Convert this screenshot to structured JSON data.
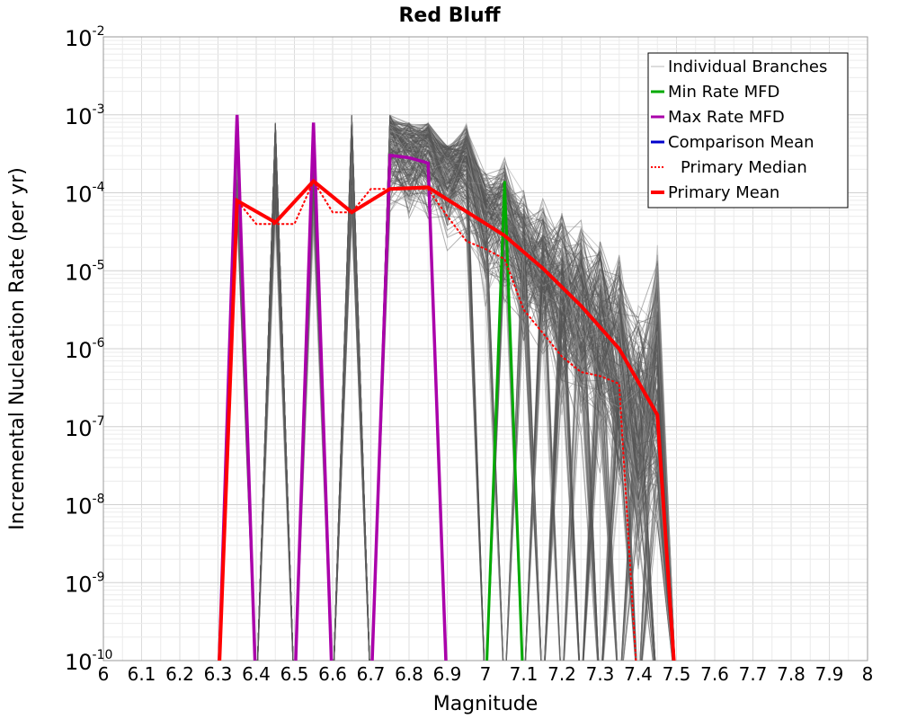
{
  "chart_data": {
    "type": "line",
    "title": "Red Bluff",
    "xlabel": "Magnitude",
    "ylabel": "Incremental Nucleation Rate (per yr)",
    "xlim": [
      6,
      8
    ],
    "ylim_log10": [
      -10,
      -2
    ],
    "y_scale": "log",
    "grid": true,
    "legend_position": "top-right",
    "x_ticks": [
      "6",
      "6.1",
      "6.2",
      "6.3",
      "6.4",
      "6.5",
      "6.6",
      "6.7",
      "6.8",
      "6.9",
      "7",
      "7.1",
      "7.2",
      "7.3",
      "7.4",
      "7.5",
      "7.6",
      "7.7",
      "7.8",
      "7.9",
      "8"
    ],
    "y_ticks": [
      {
        "base": "10",
        "exp": "-2",
        "log": -2
      },
      {
        "base": "10",
        "exp": "-3",
        "log": -3
      },
      {
        "base": "10",
        "exp": "-4",
        "log": -4
      },
      {
        "base": "10",
        "exp": "-5",
        "log": -5
      },
      {
        "base": "10",
        "exp": "-6",
        "log": -6
      },
      {
        "base": "10",
        "exp": "-7",
        "log": -7
      },
      {
        "base": "10",
        "exp": "-8",
        "log": -8
      },
      {
        "base": "10",
        "exp": "-9",
        "log": -9
      },
      {
        "base": "10",
        "exp": "-10",
        "log": -10
      }
    ],
    "legend": [
      {
        "label": "Individual Branches",
        "color": "#bbbbbb",
        "style": "thin"
      },
      {
        "label": "Min Rate MFD",
        "color": "#00aa00",
        "style": "solid"
      },
      {
        "label": "Max Rate MFD",
        "color": "#aa00aa",
        "style": "solid"
      },
      {
        "label": "Comparison Mean",
        "color": "#0000cc",
        "style": "solid"
      },
      {
        "label": "Primary Median",
        "color": "#ff0000",
        "style": "dotted"
      },
      {
        "label": "Primary Mean",
        "color": "#ff0000",
        "style": "thick"
      }
    ],
    "series": [
      {
        "name": "Individual Branches (envelope, max)",
        "color": "#555555",
        "x": [
          6.3,
          6.35,
          6.4,
          6.45,
          6.5,
          6.55,
          6.6,
          6.65,
          6.7,
          6.75,
          6.8,
          6.85,
          6.9,
          6.95,
          7.0,
          7.05,
          7.1,
          7.15,
          7.2,
          7.25,
          7.3,
          7.35,
          7.4,
          7.45,
          7.5
        ],
        "log10_y": [
          -10.5,
          -3.0,
          -10.5,
          -3.1,
          -10.5,
          -3.1,
          -10.5,
          -3.0,
          -10.5,
          -3.0,
          -3.1,
          -3.1,
          -3.4,
          -3.1,
          -3.7,
          -3.5,
          -3.9,
          -4.0,
          -4.2,
          -4.3,
          -4.5,
          -4.7,
          -5.4,
          -4.6,
          -10.5
        ]
      },
      {
        "name": "Min Rate MFD",
        "color": "#00aa00",
        "x": [
          7.0,
          7.05,
          7.1
        ],
        "log10_y": [
          -10.5,
          -3.85,
          -10.5
        ]
      },
      {
        "name": "Max Rate MFD",
        "color": "#aa00aa",
        "x": [
          6.3,
          6.35,
          6.4,
          6.45,
          6.5,
          6.55,
          6.6,
          6.65,
          6.7,
          6.75,
          6.8,
          6.85,
          6.9
        ],
        "log10_y": [
          -10.5,
          -3.0,
          -10.5,
          null,
          -10.5,
          -3.1,
          -10.5,
          null,
          -10.5,
          -3.52,
          -3.55,
          -3.62,
          -10.5
        ]
      },
      {
        "name": "Primary Median",
        "color": "#ff0000",
        "x": [
          6.3,
          6.35,
          6.4,
          6.45,
          6.5,
          6.55,
          6.6,
          6.65,
          6.7,
          6.75,
          6.8,
          6.85,
          6.9,
          6.95,
          7.0,
          7.05,
          7.1,
          7.15,
          7.2,
          7.25,
          7.3,
          7.35,
          7.4
        ],
        "log10_y": [
          -10.3,
          -4.1,
          -4.4,
          -4.4,
          -4.4,
          -3.85,
          -4.25,
          -4.25,
          -3.95,
          -3.95,
          -3.95,
          -3.95,
          -4.3,
          -4.62,
          -4.72,
          -4.85,
          -5.5,
          -5.8,
          -6.1,
          -6.3,
          -6.35,
          -6.45,
          -10.5
        ]
      },
      {
        "name": "Primary Mean",
        "color": "#ff0000",
        "x": [
          6.3,
          6.35,
          6.45,
          6.55,
          6.65,
          6.75,
          6.85,
          7.05,
          7.15,
          7.25,
          7.35,
          7.45,
          7.5
        ],
        "log10_y": [
          -10.5,
          -4.1,
          -4.38,
          -3.85,
          -4.25,
          -3.95,
          -3.93,
          -4.55,
          -4.97,
          -5.45,
          -6.0,
          -6.85,
          -10.5
        ]
      }
    ]
  }
}
